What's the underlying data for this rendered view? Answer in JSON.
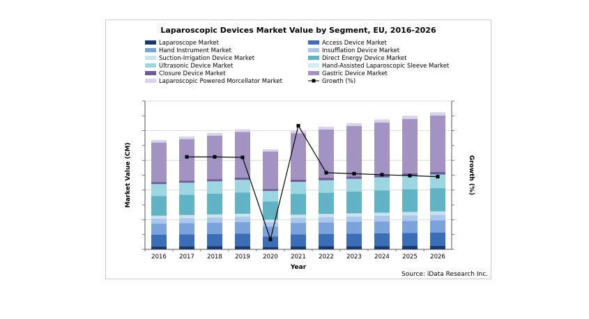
{
  "chart_data": {
    "type": "bar",
    "stacked": true,
    "title": "Laparoscopic Devices Market Value by Segment, EU, 2016-2026",
    "xlabel": "Year",
    "ylabel": "Market Value (CM)",
    "y2label": "Growth (%)",
    "source": "Source: iData Research Inc.",
    "categories": [
      "2016",
      "2017",
      "2018",
      "2019",
      "2020",
      "2021",
      "2022",
      "2023",
      "2024",
      "2025",
      "2026"
    ],
    "series": [
      {
        "name": "Laparoscope Market",
        "color": "#1a3a6e",
        "values": [
          0.3,
          0.31,
          0.32,
          0.33,
          0.26,
          0.31,
          0.32,
          0.33,
          0.34,
          0.35,
          0.36
        ]
      },
      {
        "name": "Access Device Market",
        "color": "#3a6fb8",
        "values": [
          1.2,
          1.22,
          1.24,
          1.26,
          1.05,
          1.22,
          1.25,
          1.27,
          1.29,
          1.31,
          1.33
        ]
      },
      {
        "name": "Hand Instrument Market",
        "color": "#7aa3dc",
        "values": [
          1.1,
          1.12,
          1.14,
          1.16,
          0.98,
          1.14,
          1.16,
          1.18,
          1.2,
          1.22,
          1.24
        ]
      },
      {
        "name": "Insufflation Device Market",
        "color": "#a9c7ec",
        "values": [
          0.5,
          0.51,
          0.52,
          0.53,
          0.44,
          0.52,
          0.53,
          0.54,
          0.55,
          0.56,
          0.57
        ]
      },
      {
        "name": "Suction-Irrigation Device Market",
        "color": "#c9e3ee",
        "values": [
          0.3,
          0.31,
          0.31,
          0.32,
          0.27,
          0.31,
          0.32,
          0.32,
          0.33,
          0.34,
          0.34
        ]
      },
      {
        "name": "Direct Energy Device Market",
        "color": "#5fb3c3",
        "values": [
          2.0,
          2.05,
          2.1,
          2.15,
          1.85,
          2.1,
          2.15,
          2.2,
          2.25,
          2.3,
          2.35
        ]
      },
      {
        "name": "Ultrasonic Device Market",
        "color": "#9cd6e0",
        "values": [
          1.2,
          1.22,
          1.25,
          1.28,
          1.05,
          1.22,
          1.26,
          1.29,
          1.32,
          1.35,
          1.38
        ]
      },
      {
        "name": "Hand-Assisted Laparoscopic Sleeve Market",
        "color": "#d4ecf3",
        "values": [
          0.0,
          0.0,
          0.0,
          0.0,
          0.0,
          0.0,
          0.0,
          0.0,
          0.0,
          0.0,
          0.0
        ]
      },
      {
        "name": "Closure Device Market",
        "color": "#6e5a94",
        "values": [
          0.2,
          0.21,
          0.22,
          0.23,
          0.19,
          0.22,
          0.23,
          0.24,
          0.25,
          0.26,
          0.27
        ]
      },
      {
        "name": "Gastric Device Market",
        "color": "#a393c2",
        "values": [
          4.0,
          4.2,
          4.4,
          4.6,
          3.8,
          4.7,
          4.9,
          5.1,
          5.3,
          5.5,
          5.7
        ]
      },
      {
        "name": "Laparoscopic Powered Morcellator Market",
        "color": "#d9d2e8",
        "values": [
          0.25,
          0.26,
          0.27,
          0.28,
          0.23,
          0.27,
          0.28,
          0.29,
          0.3,
          0.31,
          0.32
        ]
      }
    ],
    "growth": {
      "name": "Growth (%)",
      "categories": [
        "2017",
        "2018",
        "2019",
        "2020",
        "2021",
        "2022",
        "2023",
        "2024",
        "2025",
        "2026"
      ],
      "values": [
        3.7,
        3.7,
        3.6,
        -13.0,
        10.0,
        0.5,
        0.3,
        0.1,
        -0.1,
        -0.3
      ]
    },
    "ylim": [
      0,
      15
    ],
    "y2lim": [
      -15,
      15
    ],
    "legend_position": "top"
  }
}
